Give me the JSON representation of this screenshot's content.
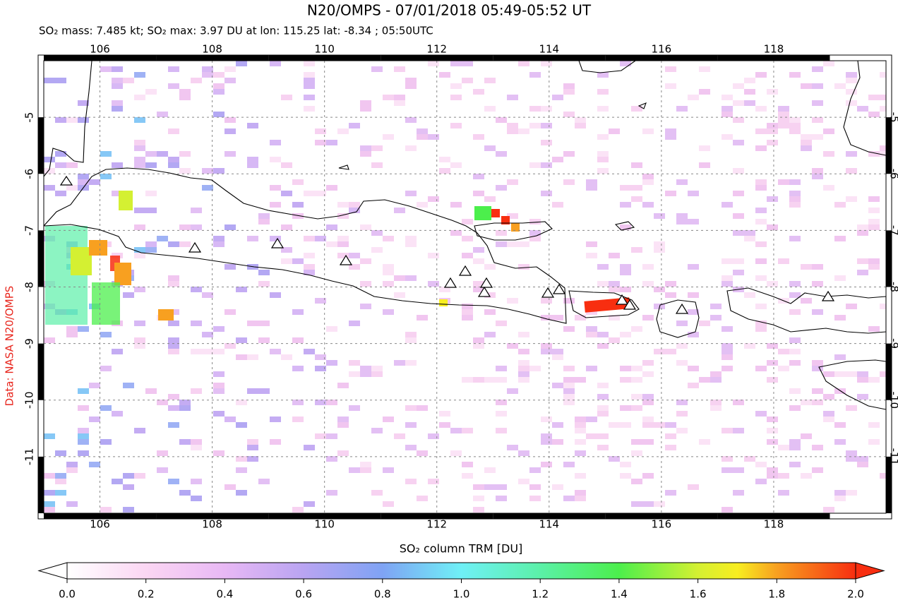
{
  "chart_data": {
    "type": "map",
    "title": "N20/OMPS - 07/01/2018 05:49-05:52 UT",
    "subtitle": "SO₂ mass: 7.485 kt; SO₂ max: 3.97 DU at lon: 115.25 lat: -8.34 ; 05:50UTC",
    "credit": "Data: NASA N20/OMPS",
    "xlim": [
      105,
      120
    ],
    "ylim": [
      -12,
      -4
    ],
    "xticks": [
      106,
      108,
      110,
      112,
      114,
      116,
      118
    ],
    "yticks": [
      -5,
      -6,
      -7,
      -8,
      -9,
      -10,
      -11
    ],
    "grid": true,
    "colorbar": {
      "label": "SO₂ column TRM [DU]",
      "lim": [
        0,
        2
      ],
      "ticks": [
        {
          "value": 0,
          "label": "0.0"
        },
        {
          "value": 0.2,
          "label": "0.2"
        },
        {
          "value": 0.4,
          "label": "0.4"
        },
        {
          "value": 0.6,
          "label": "0.6"
        },
        {
          "value": 0.8,
          "label": "0.8"
        },
        {
          "value": 1,
          "label": "1.0"
        },
        {
          "value": 1.2,
          "label": "1.2"
        },
        {
          "value": 1.4,
          "label": "1.4"
        },
        {
          "value": 1.6,
          "label": "1.6"
        },
        {
          "value": 1.8,
          "label": "1.8"
        },
        {
          "value": 2,
          "label": "2.0"
        }
      ]
    }
  }
}
